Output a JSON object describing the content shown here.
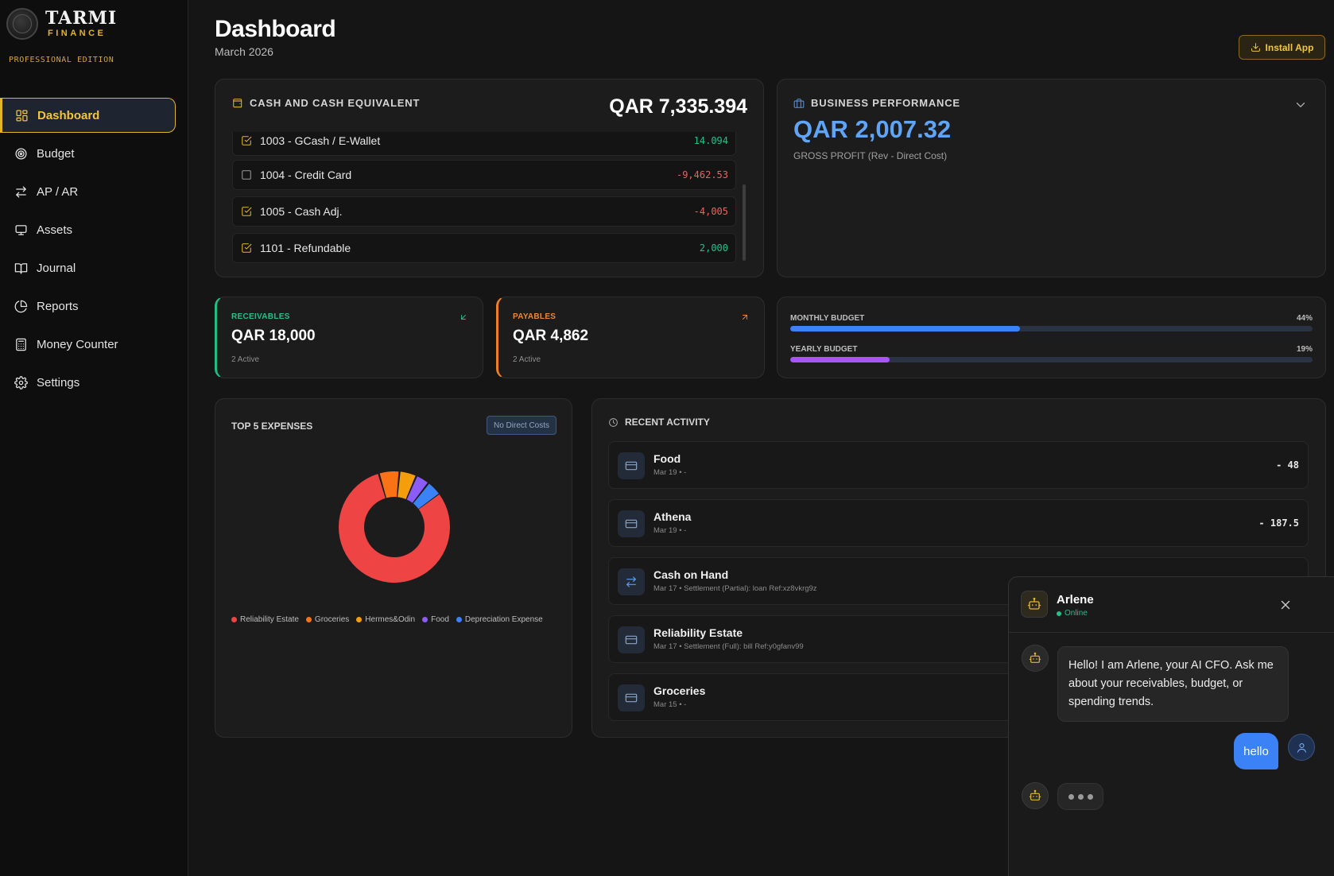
{
  "brand": {
    "name": "TARMI",
    "subtitle": "FINANCE",
    "edition": "PROFESSIONAL EDITION"
  },
  "nav": [
    {
      "label": "Dashboard",
      "icon": "dashboard-grid-icon",
      "active": true
    },
    {
      "label": "Budget",
      "icon": "target-icon"
    },
    {
      "label": "AP / AR",
      "icon": "arrows-swap-icon"
    },
    {
      "label": "Assets",
      "icon": "monitor-icon"
    },
    {
      "label": "Journal",
      "icon": "book-icon"
    },
    {
      "label": "Reports",
      "icon": "pie-chart-icon"
    },
    {
      "label": "Money Counter",
      "icon": "calculator-icon"
    },
    {
      "label": "Settings",
      "icon": "gear-icon"
    }
  ],
  "header": {
    "title": "Dashboard",
    "subtitle": "March 2026",
    "install_label": "Install App"
  },
  "cash": {
    "title": "CASH AND CASH EQUIVALENT",
    "total": "QAR 7,335.394",
    "accounts": [
      {
        "name": "1003 - GCash / E-Wallet",
        "amount": "14.094",
        "checked": true,
        "sign": "pos"
      },
      {
        "name": "1004 - Credit Card",
        "amount": "-9,462.53",
        "checked": false,
        "sign": "neg"
      },
      {
        "name": "1005 - Cash Adj.",
        "amount": "-4,005",
        "checked": true,
        "sign": "neg"
      },
      {
        "name": "1101 - Refundable",
        "amount": "2,000",
        "checked": true,
        "sign": "pos"
      }
    ]
  },
  "business": {
    "title": "BUSINESS PERFORMANCE",
    "value": "QAR 2,007.32",
    "subtitle": "GROSS PROFIT (Rev - Direct Cost)"
  },
  "receivables": {
    "label": "RECEIVABLES",
    "value": "QAR 18,000",
    "meta": "2 Active"
  },
  "payables": {
    "label": "PAYABLES",
    "value": "QAR 4,862",
    "meta": "2 Active"
  },
  "budget": {
    "monthly": {
      "label": "MONTHLY BUDGET",
      "pct_label": "44%",
      "fraction": 0.44,
      "color": "#3b82f6"
    },
    "yearly": {
      "label": "YEARLY BUDGET",
      "pct_label": "19%",
      "fraction": 0.19,
      "color": "#a855f7"
    }
  },
  "expenses": {
    "title": "TOP 5 EXPENSES",
    "badge": "No Direct Costs",
    "chart_data": {
      "type": "pie",
      "categories": [
        "Reliability Estate",
        "Groceries",
        "Hermes&Odin",
        "Food",
        "Depreciation Expense"
      ],
      "values": [
        80.5,
        6,
        5,
        4,
        4.5
      ],
      "colors": [
        "#ef4444",
        "#f97316",
        "#f59e0b",
        "#8b5cf6",
        "#3b82f6"
      ]
    }
  },
  "activity": {
    "title": "RECENT ACTIVITY",
    "items": [
      {
        "title": "Food",
        "sub": "Mar 19 • -",
        "amount": "- 48",
        "icon": "card-icon"
      },
      {
        "title": "Athena",
        "sub": "Mar 19 • -",
        "amount": "- 187.5",
        "icon": "card-icon"
      },
      {
        "title": "Cash on Hand",
        "sub": "Mar 17 • Settlement (Partial): loan Ref:xz8vkrg9z",
        "amount": "",
        "icon": "transfer-icon"
      },
      {
        "title": "Reliability Estate",
        "sub": "Mar 17 • Settlement (Full): bill Ref:y0gfanv99",
        "amount": "",
        "icon": "card-icon"
      },
      {
        "title": "Groceries",
        "sub": "Mar 15 • -",
        "amount": "",
        "icon": "card-icon"
      }
    ]
  },
  "chat": {
    "name": "Arlene",
    "status": "Online",
    "bot_message": "Hello! I am Arlene, your AI CFO. Ask me about your receivables, budget, or spending trends.",
    "user_message": "hello"
  }
}
